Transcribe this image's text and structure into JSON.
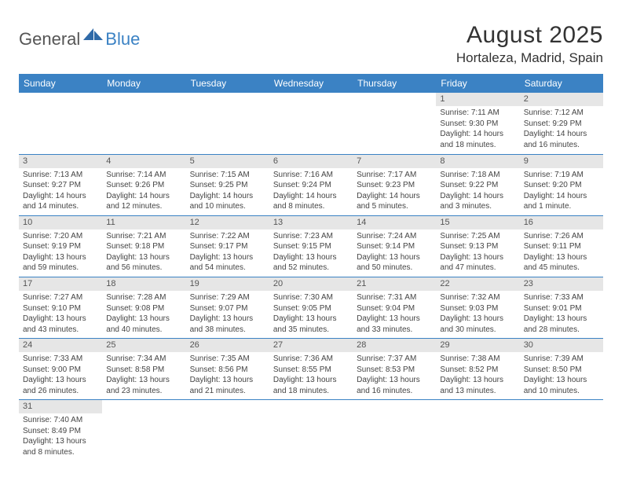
{
  "logo": {
    "general": "General",
    "blue": "Blue"
  },
  "title": "August 2025",
  "location": "Hortaleza, Madrid, Spain",
  "colors": {
    "header_bg": "#3b82c4",
    "header_text": "#ffffff",
    "daynum_bg": "#e6e6e6",
    "daynum_text": "#555555",
    "body_text": "#444444",
    "rule": "#3b82c4",
    "page_bg": "#ffffff"
  },
  "typography": {
    "title_fontsize": 30,
    "location_fontsize": 17,
    "weekday_fontsize": 12,
    "daynum_fontsize": 11,
    "body_fontsize": 10
  },
  "weekdays": [
    "Sunday",
    "Monday",
    "Tuesday",
    "Wednesday",
    "Thursday",
    "Friday",
    "Saturday"
  ],
  "weeks": [
    [
      null,
      null,
      null,
      null,
      null,
      {
        "n": "1",
        "sunrise": "Sunrise: 7:11 AM",
        "sunset": "Sunset: 9:30 PM",
        "day1": "Daylight: 14 hours",
        "day2": "and 18 minutes."
      },
      {
        "n": "2",
        "sunrise": "Sunrise: 7:12 AM",
        "sunset": "Sunset: 9:29 PM",
        "day1": "Daylight: 14 hours",
        "day2": "and 16 minutes."
      }
    ],
    [
      {
        "n": "3",
        "sunrise": "Sunrise: 7:13 AM",
        "sunset": "Sunset: 9:27 PM",
        "day1": "Daylight: 14 hours",
        "day2": "and 14 minutes."
      },
      {
        "n": "4",
        "sunrise": "Sunrise: 7:14 AM",
        "sunset": "Sunset: 9:26 PM",
        "day1": "Daylight: 14 hours",
        "day2": "and 12 minutes."
      },
      {
        "n": "5",
        "sunrise": "Sunrise: 7:15 AM",
        "sunset": "Sunset: 9:25 PM",
        "day1": "Daylight: 14 hours",
        "day2": "and 10 minutes."
      },
      {
        "n": "6",
        "sunrise": "Sunrise: 7:16 AM",
        "sunset": "Sunset: 9:24 PM",
        "day1": "Daylight: 14 hours",
        "day2": "and 8 minutes."
      },
      {
        "n": "7",
        "sunrise": "Sunrise: 7:17 AM",
        "sunset": "Sunset: 9:23 PM",
        "day1": "Daylight: 14 hours",
        "day2": "and 5 minutes."
      },
      {
        "n": "8",
        "sunrise": "Sunrise: 7:18 AM",
        "sunset": "Sunset: 9:22 PM",
        "day1": "Daylight: 14 hours",
        "day2": "and 3 minutes."
      },
      {
        "n": "9",
        "sunrise": "Sunrise: 7:19 AM",
        "sunset": "Sunset: 9:20 PM",
        "day1": "Daylight: 14 hours",
        "day2": "and 1 minute."
      }
    ],
    [
      {
        "n": "10",
        "sunrise": "Sunrise: 7:20 AM",
        "sunset": "Sunset: 9:19 PM",
        "day1": "Daylight: 13 hours",
        "day2": "and 59 minutes."
      },
      {
        "n": "11",
        "sunrise": "Sunrise: 7:21 AM",
        "sunset": "Sunset: 9:18 PM",
        "day1": "Daylight: 13 hours",
        "day2": "and 56 minutes."
      },
      {
        "n": "12",
        "sunrise": "Sunrise: 7:22 AM",
        "sunset": "Sunset: 9:17 PM",
        "day1": "Daylight: 13 hours",
        "day2": "and 54 minutes."
      },
      {
        "n": "13",
        "sunrise": "Sunrise: 7:23 AM",
        "sunset": "Sunset: 9:15 PM",
        "day1": "Daylight: 13 hours",
        "day2": "and 52 minutes."
      },
      {
        "n": "14",
        "sunrise": "Sunrise: 7:24 AM",
        "sunset": "Sunset: 9:14 PM",
        "day1": "Daylight: 13 hours",
        "day2": "and 50 minutes."
      },
      {
        "n": "15",
        "sunrise": "Sunrise: 7:25 AM",
        "sunset": "Sunset: 9:13 PM",
        "day1": "Daylight: 13 hours",
        "day2": "and 47 minutes."
      },
      {
        "n": "16",
        "sunrise": "Sunrise: 7:26 AM",
        "sunset": "Sunset: 9:11 PM",
        "day1": "Daylight: 13 hours",
        "day2": "and 45 minutes."
      }
    ],
    [
      {
        "n": "17",
        "sunrise": "Sunrise: 7:27 AM",
        "sunset": "Sunset: 9:10 PM",
        "day1": "Daylight: 13 hours",
        "day2": "and 43 minutes."
      },
      {
        "n": "18",
        "sunrise": "Sunrise: 7:28 AM",
        "sunset": "Sunset: 9:08 PM",
        "day1": "Daylight: 13 hours",
        "day2": "and 40 minutes."
      },
      {
        "n": "19",
        "sunrise": "Sunrise: 7:29 AM",
        "sunset": "Sunset: 9:07 PM",
        "day1": "Daylight: 13 hours",
        "day2": "and 38 minutes."
      },
      {
        "n": "20",
        "sunrise": "Sunrise: 7:30 AM",
        "sunset": "Sunset: 9:05 PM",
        "day1": "Daylight: 13 hours",
        "day2": "and 35 minutes."
      },
      {
        "n": "21",
        "sunrise": "Sunrise: 7:31 AM",
        "sunset": "Sunset: 9:04 PM",
        "day1": "Daylight: 13 hours",
        "day2": "and 33 minutes."
      },
      {
        "n": "22",
        "sunrise": "Sunrise: 7:32 AM",
        "sunset": "Sunset: 9:03 PM",
        "day1": "Daylight: 13 hours",
        "day2": "and 30 minutes."
      },
      {
        "n": "23",
        "sunrise": "Sunrise: 7:33 AM",
        "sunset": "Sunset: 9:01 PM",
        "day1": "Daylight: 13 hours",
        "day2": "and 28 minutes."
      }
    ],
    [
      {
        "n": "24",
        "sunrise": "Sunrise: 7:33 AM",
        "sunset": "Sunset: 9:00 PM",
        "day1": "Daylight: 13 hours",
        "day2": "and 26 minutes."
      },
      {
        "n": "25",
        "sunrise": "Sunrise: 7:34 AM",
        "sunset": "Sunset: 8:58 PM",
        "day1": "Daylight: 13 hours",
        "day2": "and 23 minutes."
      },
      {
        "n": "26",
        "sunrise": "Sunrise: 7:35 AM",
        "sunset": "Sunset: 8:56 PM",
        "day1": "Daylight: 13 hours",
        "day2": "and 21 minutes."
      },
      {
        "n": "27",
        "sunrise": "Sunrise: 7:36 AM",
        "sunset": "Sunset: 8:55 PM",
        "day1": "Daylight: 13 hours",
        "day2": "and 18 minutes."
      },
      {
        "n": "28",
        "sunrise": "Sunrise: 7:37 AM",
        "sunset": "Sunset: 8:53 PM",
        "day1": "Daylight: 13 hours",
        "day2": "and 16 minutes."
      },
      {
        "n": "29",
        "sunrise": "Sunrise: 7:38 AM",
        "sunset": "Sunset: 8:52 PM",
        "day1": "Daylight: 13 hours",
        "day2": "and 13 minutes."
      },
      {
        "n": "30",
        "sunrise": "Sunrise: 7:39 AM",
        "sunset": "Sunset: 8:50 PM",
        "day1": "Daylight: 13 hours",
        "day2": "and 10 minutes."
      }
    ],
    [
      {
        "n": "31",
        "sunrise": "Sunrise: 7:40 AM",
        "sunset": "Sunset: 8:49 PM",
        "day1": "Daylight: 13 hours",
        "day2": "and 8 minutes."
      },
      null,
      null,
      null,
      null,
      null,
      null
    ]
  ]
}
